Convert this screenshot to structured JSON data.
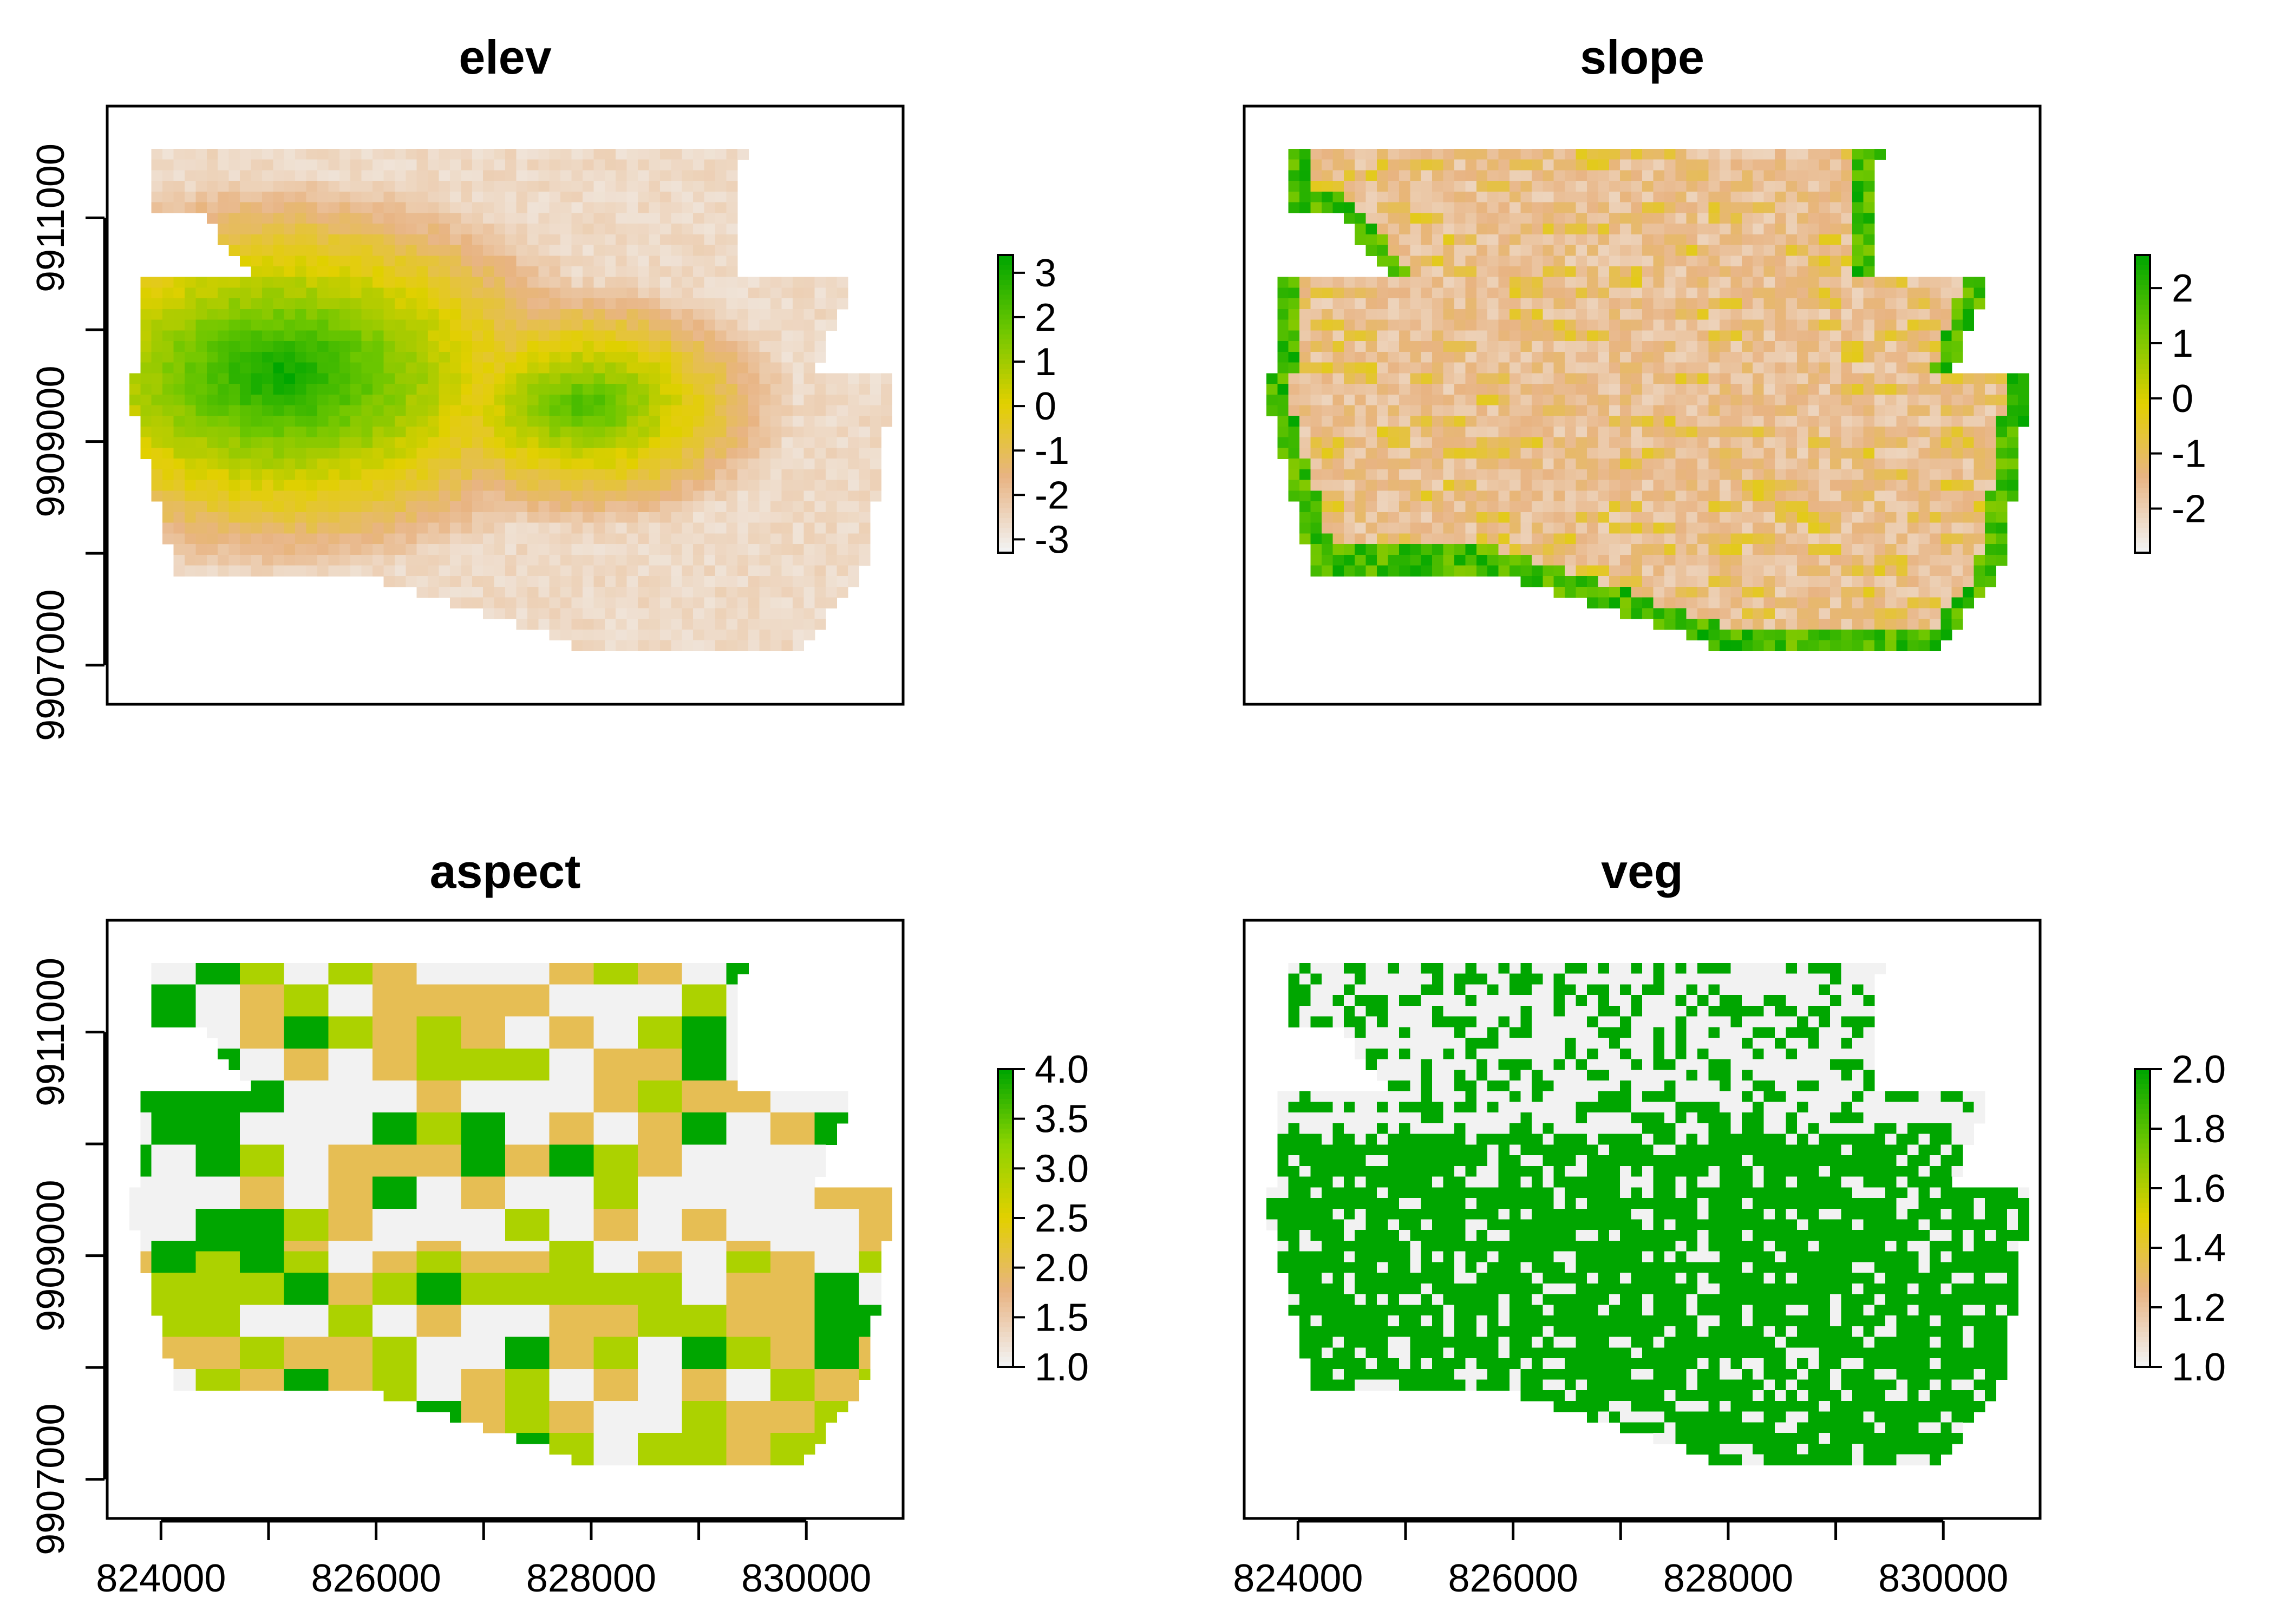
{
  "chart_data": [
    {
      "type": "heatmap",
      "title": "elev",
      "x": [
        824000,
        826000,
        828000,
        830000
      ],
      "y": [
        9907000,
        9909000,
        9911000
      ],
      "show_x_axis": false,
      "show_y_axis": true,
      "legend": {
        "placement": "right",
        "ticks": [
          3,
          2,
          1,
          0,
          -1,
          -2,
          -3
        ],
        "labels": [
          "3",
          "2",
          "1",
          "0",
          "-1",
          "-2",
          "-3"
        ],
        "range": [
          -3.3,
          3.4
        ]
      },
      "colors": [
        "#f2f2f2",
        "#e8b483",
        "#e2d000",
        "#6fc700",
        "#00a600"
      ]
    },
    {
      "type": "heatmap",
      "title": "slope",
      "x": [
        824000,
        826000,
        828000,
        830000
      ],
      "y": [
        9907000,
        9909000,
        9911000
      ],
      "show_x_axis": false,
      "show_y_axis": false,
      "legend": {
        "placement": "right",
        "ticks": [
          2,
          1,
          0,
          -1,
          -2
        ],
        "labels": [
          "2",
          "1",
          "0",
          "-1",
          "-2"
        ],
        "range": [
          -2.8,
          2.6
        ]
      },
      "colors": [
        "#f2f2f2",
        "#e8b483",
        "#e2d000",
        "#6fc700",
        "#00a600"
      ]
    },
    {
      "type": "heatmap",
      "title": "aspect",
      "x": [
        824000,
        826000,
        828000,
        830000
      ],
      "y": [
        9907000,
        9909000,
        9911000
      ],
      "show_x_axis": true,
      "show_y_axis": true,
      "legend": {
        "placement": "right",
        "ticks": [
          4.0,
          3.5,
          3.0,
          2.5,
          2.0,
          1.5,
          1.0
        ],
        "labels": [
          "4.0",
          "3.5",
          "3.0",
          "2.5",
          "2.0",
          "1.5",
          "1.0"
        ],
        "range": [
          1,
          4
        ]
      },
      "colors": [
        "#f2f2f2",
        "#e8b483",
        "#e2d000",
        "#8ed300",
        "#00a600"
      ]
    },
    {
      "type": "heatmap",
      "title": "veg",
      "x": [
        824000,
        826000,
        828000,
        830000
      ],
      "y": [
        9907000,
        9909000,
        9911000
      ],
      "show_x_axis": true,
      "show_y_axis": false,
      "legend": {
        "placement": "right",
        "ticks": [
          2.0,
          1.8,
          1.6,
          1.4,
          1.2,
          1.0
        ],
        "labels": [
          "2.0",
          "1.8",
          "1.6",
          "1.4",
          "1.2",
          "1.0"
        ],
        "range": [
          1,
          2
        ]
      },
      "colors": [
        "#f2f2f2",
        "#e8b483",
        "#e2d000",
        "#6fc700",
        "#00a600"
      ]
    }
  ],
  "x_domain": [
    823500,
    830900
  ],
  "y_domain": [
    9906650,
    9912000
  ],
  "y_tick_values": [
    9907000,
    9908000,
    9909000,
    9910000,
    9911000
  ],
  "x_tick_values": [
    824000,
    825000,
    826000,
    827000,
    828000,
    829000,
    830000
  ]
}
